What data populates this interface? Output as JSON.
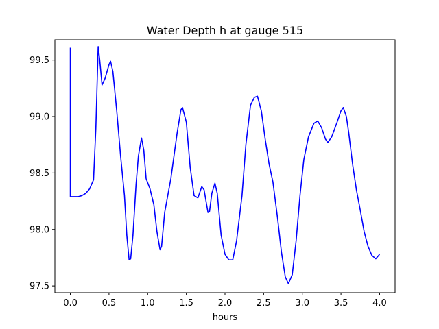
{
  "chart_data": {
    "type": "line",
    "title": "Water Depth h at gauge 515",
    "xlabel": "hours",
    "ylabel": "",
    "xlim": [
      -0.2,
      4.2
    ],
    "ylim": [
      97.44,
      99.68
    ],
    "xticks": [
      0.0,
      0.5,
      1.0,
      1.5,
      2.0,
      2.5,
      3.0,
      3.5,
      4.0
    ],
    "xtick_labels": [
      "0.0",
      "0.5",
      "1.0",
      "1.5",
      "2.0",
      "2.5",
      "3.0",
      "3.5",
      "4.0"
    ],
    "yticks": [
      97.5,
      98.0,
      98.5,
      99.0,
      99.5
    ],
    "ytick_labels": [
      "97.5",
      "98.0",
      "98.5",
      "99.0",
      "99.5"
    ],
    "grid": false,
    "series": [
      {
        "color": "#0000ff",
        "points": [
          [
            0.0,
            99.61
          ],
          [
            0.0,
            98.29
          ],
          [
            0.1,
            98.29
          ],
          [
            0.15,
            98.3
          ],
          [
            0.2,
            98.32
          ],
          [
            0.25,
            98.36
          ],
          [
            0.3,
            98.44
          ],
          [
            0.33,
            98.9
          ],
          [
            0.36,
            99.62
          ],
          [
            0.38,
            99.5
          ],
          [
            0.41,
            99.28
          ],
          [
            0.45,
            99.34
          ],
          [
            0.5,
            99.46
          ],
          [
            0.52,
            99.49
          ],
          [
            0.55,
            99.4
          ],
          [
            0.6,
            99.05
          ],
          [
            0.65,
            98.65
          ],
          [
            0.7,
            98.3
          ],
          [
            0.73,
            97.95
          ],
          [
            0.76,
            97.73
          ],
          [
            0.78,
            97.74
          ],
          [
            0.81,
            97.95
          ],
          [
            0.85,
            98.4
          ],
          [
            0.88,
            98.65
          ],
          [
            0.92,
            98.81
          ],
          [
            0.95,
            98.7
          ],
          [
            0.98,
            98.45
          ],
          [
            1.03,
            98.36
          ],
          [
            1.08,
            98.22
          ],
          [
            1.12,
            97.98
          ],
          [
            1.16,
            97.82
          ],
          [
            1.18,
            97.85
          ],
          [
            1.22,
            98.15
          ],
          [
            1.3,
            98.45
          ],
          [
            1.38,
            98.85
          ],
          [
            1.43,
            99.06
          ],
          [
            1.45,
            99.08
          ],
          [
            1.5,
            98.95
          ],
          [
            1.55,
            98.55
          ],
          [
            1.6,
            98.3
          ],
          [
            1.65,
            98.28
          ],
          [
            1.7,
            98.38
          ],
          [
            1.73,
            98.35
          ],
          [
            1.78,
            98.15
          ],
          [
            1.8,
            98.16
          ],
          [
            1.83,
            98.32
          ],
          [
            1.87,
            98.41
          ],
          [
            1.9,
            98.32
          ],
          [
            1.95,
            97.95
          ],
          [
            2.0,
            97.78
          ],
          [
            2.05,
            97.73
          ],
          [
            2.1,
            97.73
          ],
          [
            2.15,
            97.9
          ],
          [
            2.22,
            98.3
          ],
          [
            2.27,
            98.75
          ],
          [
            2.33,
            99.1
          ],
          [
            2.38,
            99.17
          ],
          [
            2.42,
            99.18
          ],
          [
            2.47,
            99.05
          ],
          [
            2.52,
            98.8
          ],
          [
            2.57,
            98.58
          ],
          [
            2.62,
            98.42
          ],
          [
            2.68,
            98.1
          ],
          [
            2.73,
            97.8
          ],
          [
            2.78,
            97.58
          ],
          [
            2.82,
            97.52
          ],
          [
            2.87,
            97.6
          ],
          [
            2.92,
            97.9
          ],
          [
            2.97,
            98.3
          ],
          [
            3.02,
            98.62
          ],
          [
            3.08,
            98.82
          ],
          [
            3.15,
            98.94
          ],
          [
            3.2,
            98.96
          ],
          [
            3.25,
            98.9
          ],
          [
            3.3,
            98.8
          ],
          [
            3.33,
            98.77
          ],
          [
            3.38,
            98.82
          ],
          [
            3.45,
            98.95
          ],
          [
            3.5,
            99.05
          ],
          [
            3.53,
            99.08
          ],
          [
            3.57,
            99.0
          ],
          [
            3.6,
            98.86
          ],
          [
            3.65,
            98.58
          ],
          [
            3.7,
            98.35
          ],
          [
            3.75,
            98.17
          ],
          [
            3.8,
            97.98
          ],
          [
            3.85,
            97.85
          ],
          [
            3.9,
            97.77
          ],
          [
            3.95,
            97.74
          ],
          [
            4.0,
            97.78
          ]
        ]
      }
    ]
  }
}
